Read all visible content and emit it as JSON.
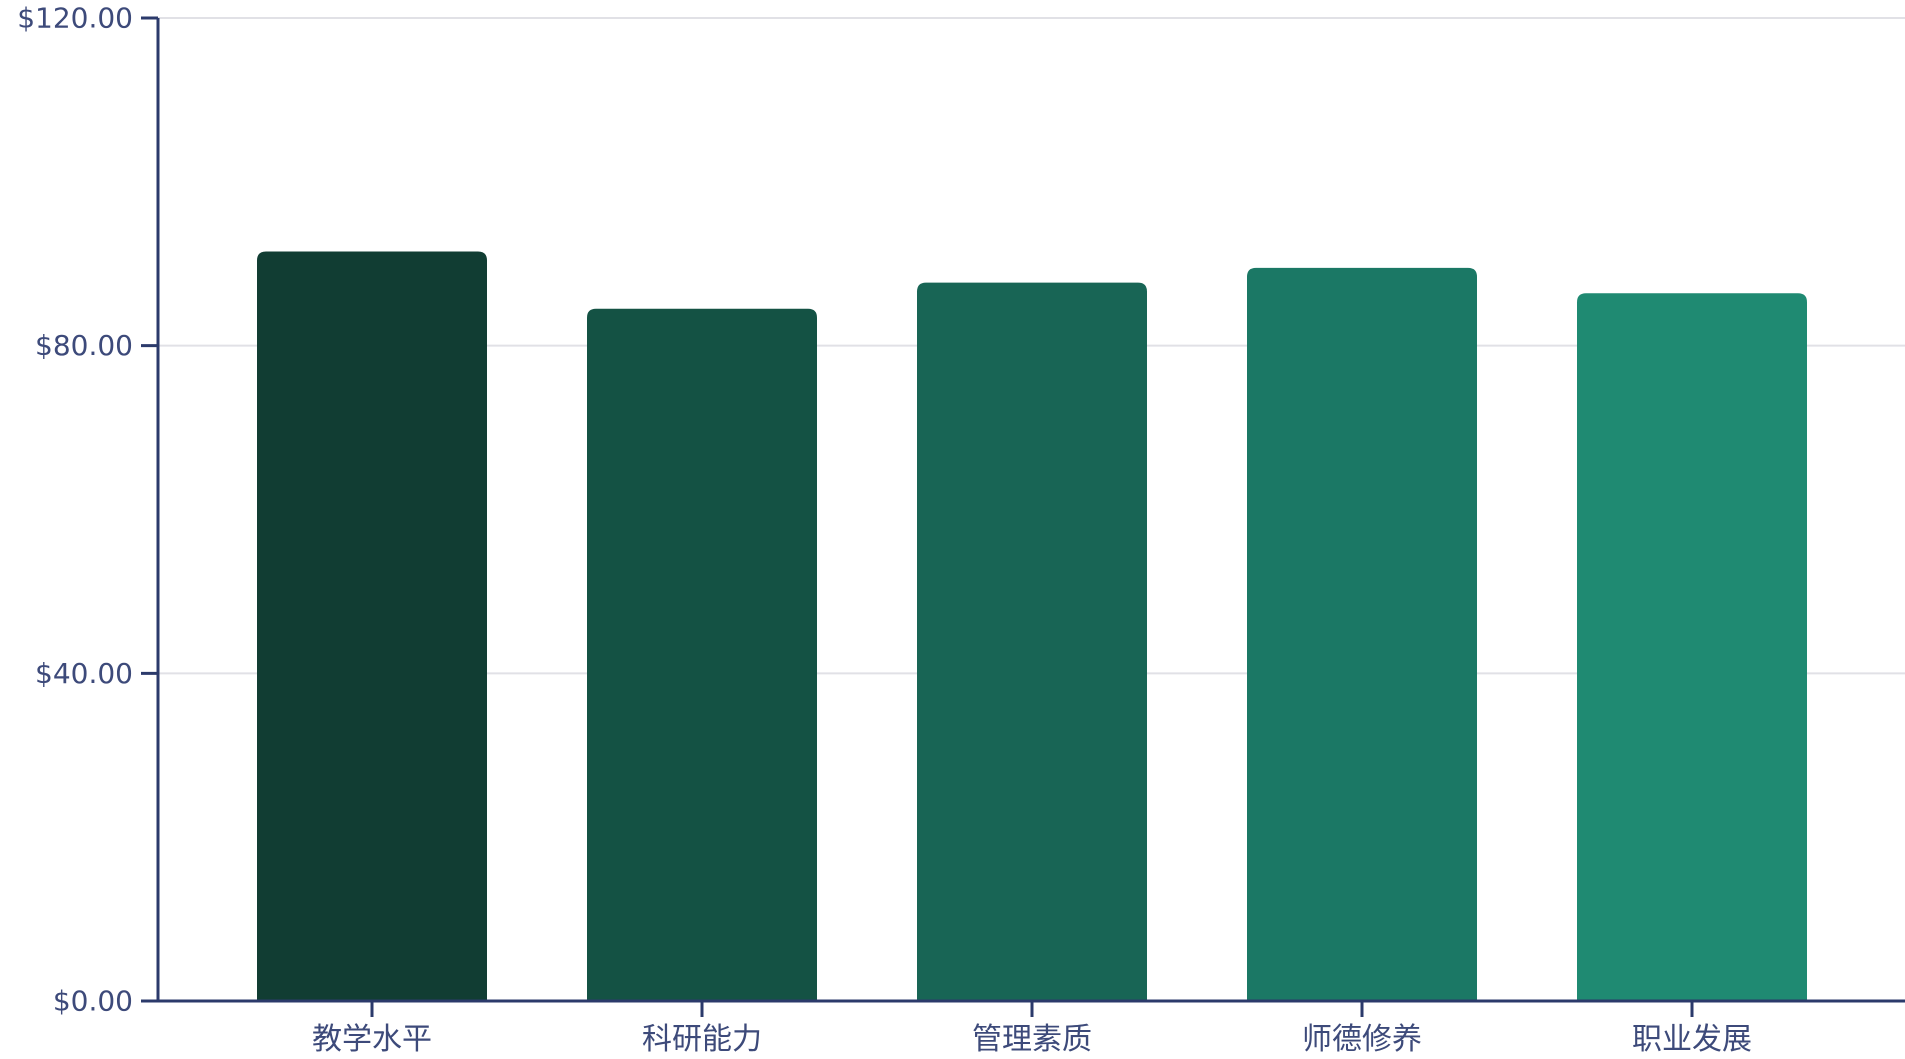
{
  "chart_data": {
    "type": "bar",
    "categories": [
      "教学水平",
      "科研能力",
      "管理素质",
      "师德修养",
      "职业发展"
    ],
    "values": [
      91.5,
      84.5,
      87.7,
      89.5,
      86.4
    ],
    "ylim": [
      0,
      120
    ],
    "yticks": [
      0,
      40,
      80,
      120
    ],
    "ytick_labels": [
      "$0.00",
      "$40.00",
      "$80.00",
      "$120.00"
    ],
    "grid": true,
    "colors": [
      "#113d33",
      "#145244",
      "#186555",
      "#1b7865",
      "#1f8a72"
    ],
    "axis_color": "#2b3a6b",
    "label_color": "#3d4a7a",
    "grid_color": "#e1e1e6"
  }
}
